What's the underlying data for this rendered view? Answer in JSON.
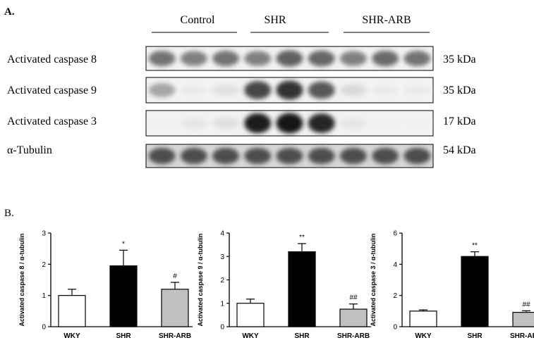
{
  "panel_a": {
    "label": "A.",
    "groups": [
      "Control",
      "SHR",
      "SHR-ARB"
    ],
    "blots": [
      {
        "label": "Activated caspase 8",
        "size": "35 kDa",
        "lanes": [
          0.55,
          0.5,
          0.55,
          0.5,
          0.62,
          0.6,
          0.5,
          0.58,
          0.55
        ]
      },
      {
        "label": "Activated caspase 9",
        "size": "35 kDa",
        "lanes": [
          0.35,
          0.08,
          0.12,
          0.72,
          0.8,
          0.65,
          0.15,
          0.08,
          0.08
        ]
      },
      {
        "label": "Activated caspase 3",
        "size": "17 kDa",
        "lanes": [
          0.06,
          0.1,
          0.12,
          0.88,
          0.92,
          0.85,
          0.1,
          0.06,
          0.06
        ]
      },
      {
        "label": "α-Tubulin",
        "size": "54 kDa",
        "lanes": [
          0.7,
          0.7,
          0.7,
          0.7,
          0.7,
          0.7,
          0.7,
          0.7,
          0.7
        ]
      }
    ]
  },
  "panel_b": {
    "label": "B."
  },
  "chart_data": [
    {
      "type": "bar",
      "categories": [
        "WKY",
        "SHR",
        "SHR-ARB"
      ],
      "values": [
        1.0,
        1.95,
        1.2
      ],
      "errors": [
        0.2,
        0.5,
        0.22
      ],
      "annotations": [
        "",
        "*",
        "#"
      ],
      "ylabel": "Activated caspase 8 / α-tubulin",
      "ylim": [
        0,
        3
      ],
      "yticks": [
        0,
        1,
        2,
        3
      ],
      "colors": [
        "#ffffff",
        "#000000",
        "#c0c0c0"
      ]
    },
    {
      "type": "bar",
      "categories": [
        "WKY",
        "SHR",
        "SHR-ARB"
      ],
      "values": [
        1.0,
        3.2,
        0.75
      ],
      "errors": [
        0.18,
        0.35,
        0.22
      ],
      "annotations": [
        "",
        "**",
        "##"
      ],
      "ylabel": "Activated caspase 9 / α-tubulin",
      "ylim": [
        0,
        4
      ],
      "yticks": [
        0,
        1,
        2,
        3,
        4
      ],
      "colors": [
        "#ffffff",
        "#000000",
        "#c0c0c0"
      ]
    },
    {
      "type": "bar",
      "categories": [
        "WKY",
        "SHR",
        "SHR-ARB"
      ],
      "values": [
        1.0,
        4.5,
        0.92
      ],
      "errors": [
        0.08,
        0.3,
        0.1
      ],
      "annotations": [
        "",
        "**",
        "##"
      ],
      "ylabel": "Activated caspase 3 / α-tubulin",
      "ylim": [
        0,
        6
      ],
      "yticks": [
        0,
        2,
        4,
        6
      ],
      "colors": [
        "#ffffff",
        "#000000",
        "#c0c0c0"
      ]
    }
  ]
}
